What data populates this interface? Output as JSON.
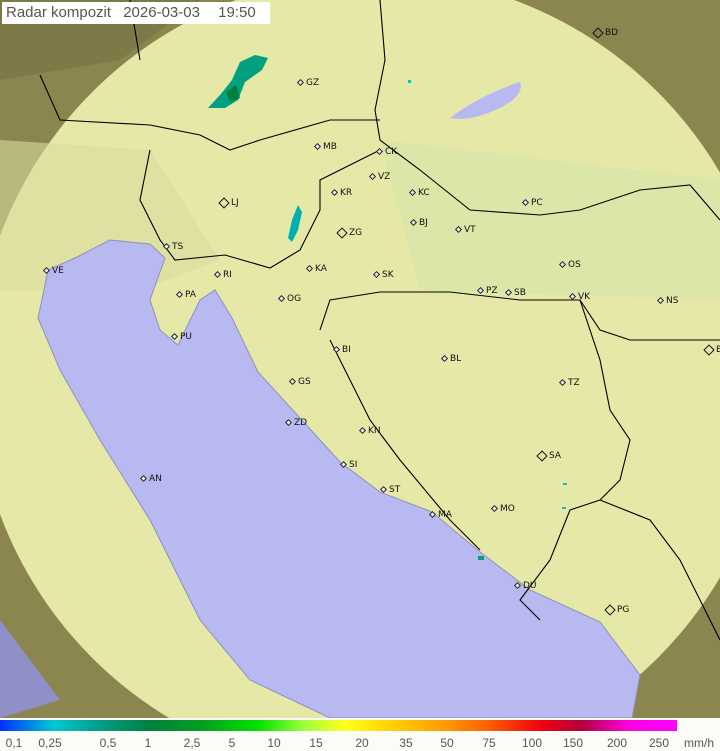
{
  "title": {
    "label": "Radar kompozit",
    "date": "2026-03-03",
    "time": "19:50"
  },
  "colors": {
    "sea": "#b9b9f2",
    "radar_coverage": "#e6e8a8",
    "terrain_outside": "#8b8550",
    "border": "#000000"
  },
  "cities": [
    {
      "code": "BD",
      "capital": true
    },
    {
      "code": "GZ",
      "capital": false
    },
    {
      "code": "MB",
      "capital": false
    },
    {
      "code": "CK",
      "capital": false
    },
    {
      "code": "VZ",
      "capital": false
    },
    {
      "code": "KR",
      "capital": false
    },
    {
      "code": "KC",
      "capital": false
    },
    {
      "code": "PC",
      "capital": false
    },
    {
      "code": "LJ",
      "capital": true
    },
    {
      "code": "ZG",
      "capital": true
    },
    {
      "code": "BJ",
      "capital": false
    },
    {
      "code": "VT",
      "capital": false
    },
    {
      "code": "TS",
      "capital": false
    },
    {
      "code": "VE",
      "capital": false
    },
    {
      "code": "KA",
      "capital": false
    },
    {
      "code": "SK",
      "capital": false
    },
    {
      "code": "OS",
      "capital": false
    },
    {
      "code": "RI",
      "capital": false
    },
    {
      "code": "PA",
      "capital": false
    },
    {
      "code": "OG",
      "capital": false
    },
    {
      "code": "PZ",
      "capital": false
    },
    {
      "code": "SB",
      "capital": false
    },
    {
      "code": "VK",
      "capital": false
    },
    {
      "code": "NS",
      "capital": false
    },
    {
      "code": "PU",
      "capital": false
    },
    {
      "code": "BI",
      "capital": false
    },
    {
      "code": "BL",
      "capital": false
    },
    {
      "code": "BG",
      "capital": true
    },
    {
      "code": "GS",
      "capital": false
    },
    {
      "code": "TZ",
      "capital": false
    },
    {
      "code": "ZD",
      "capital": false
    },
    {
      "code": "KN",
      "capital": false
    },
    {
      "code": "SA",
      "capital": true
    },
    {
      "code": "SI",
      "capital": false
    },
    {
      "code": "AN",
      "capital": false
    },
    {
      "code": "ST",
      "capital": false
    },
    {
      "code": "MA",
      "capital": false
    },
    {
      "code": "MO",
      "capital": false
    },
    {
      "code": "DU",
      "capital": false
    },
    {
      "code": "PG",
      "capital": true
    }
  ],
  "legend": {
    "labels": [
      "0,1",
      "0,25",
      "0,5",
      "1",
      "2,5",
      "5",
      "10",
      "15",
      "20",
      "35",
      "50",
      "75",
      "100",
      "150",
      "200",
      "250"
    ],
    "unit": "mm/h"
  }
}
